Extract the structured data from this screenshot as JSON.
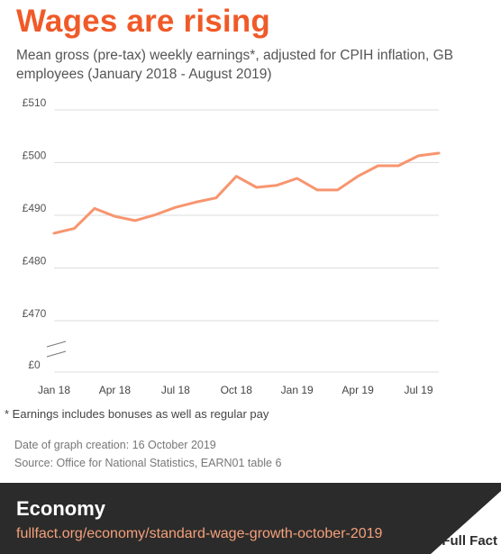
{
  "title": "Wages are rising",
  "subtitle": "Mean gross (pre-tax) weekly earnings*, adjusted for CPIH inflation, GB employees (January 2018 - August 2019)",
  "footnote": "*  Earnings includes bonuses as well as regular pay",
  "date_created": "Date of graph creation: 16 October 2019",
  "source": "Source: Office for National Statistics, EARN01 table 6",
  "footer": {
    "section": "Economy",
    "url": "fullfact.org/economy/standard-wage-growth-october-2019",
    "logo_text": "Full Fact",
    "logo_icon": "full-fact-triangle-logo"
  },
  "colors": {
    "title": "#f05a28",
    "line": "#f7956f",
    "footer_bg": "#2b2b2b",
    "url": "#f5a07a"
  },
  "chart_data": {
    "type": "line",
    "y_tick_labels": [
      "£510",
      "£500",
      "£490",
      "£480",
      "£470",
      "£0"
    ],
    "y_ticks": [
      510,
      500,
      490,
      480,
      470
    ],
    "y_axis_break": true,
    "ylim": [
      465,
      510
    ],
    "x_tick_labels": [
      "Jan 18",
      "Apr 18",
      "Jul 18",
      "Oct 18",
      "Jan 19",
      "Apr 19",
      "Jul 19"
    ],
    "x_tick_index": [
      0,
      3,
      6,
      9,
      12,
      15,
      18
    ],
    "grid": true,
    "series": [
      {
        "x": [
          "Jan 2018",
          "Feb 2018",
          "Mar 2018",
          "Apr 2018",
          "May 2018",
          "Jun 2018",
          "Jul 2018",
          "Aug 2018",
          "Sep 2018",
          "Oct 2018",
          "Nov 2018",
          "Dec 2018",
          "Jan 2019",
          "Feb 2019",
          "Mar 2019",
          "Apr 2019",
          "May 2019",
          "Jun 2019",
          "Jul 2019",
          "Aug 2019"
        ],
        "values": [
          486.6,
          487.5,
          491.3,
          489.8,
          489.0,
          490.1,
          491.5,
          492.5,
          493.3,
          497.4,
          495.3,
          495.7,
          497.0,
          494.8,
          494.8,
          497.4,
          499.4,
          499.4,
          501.3,
          501.8
        ]
      }
    ]
  }
}
